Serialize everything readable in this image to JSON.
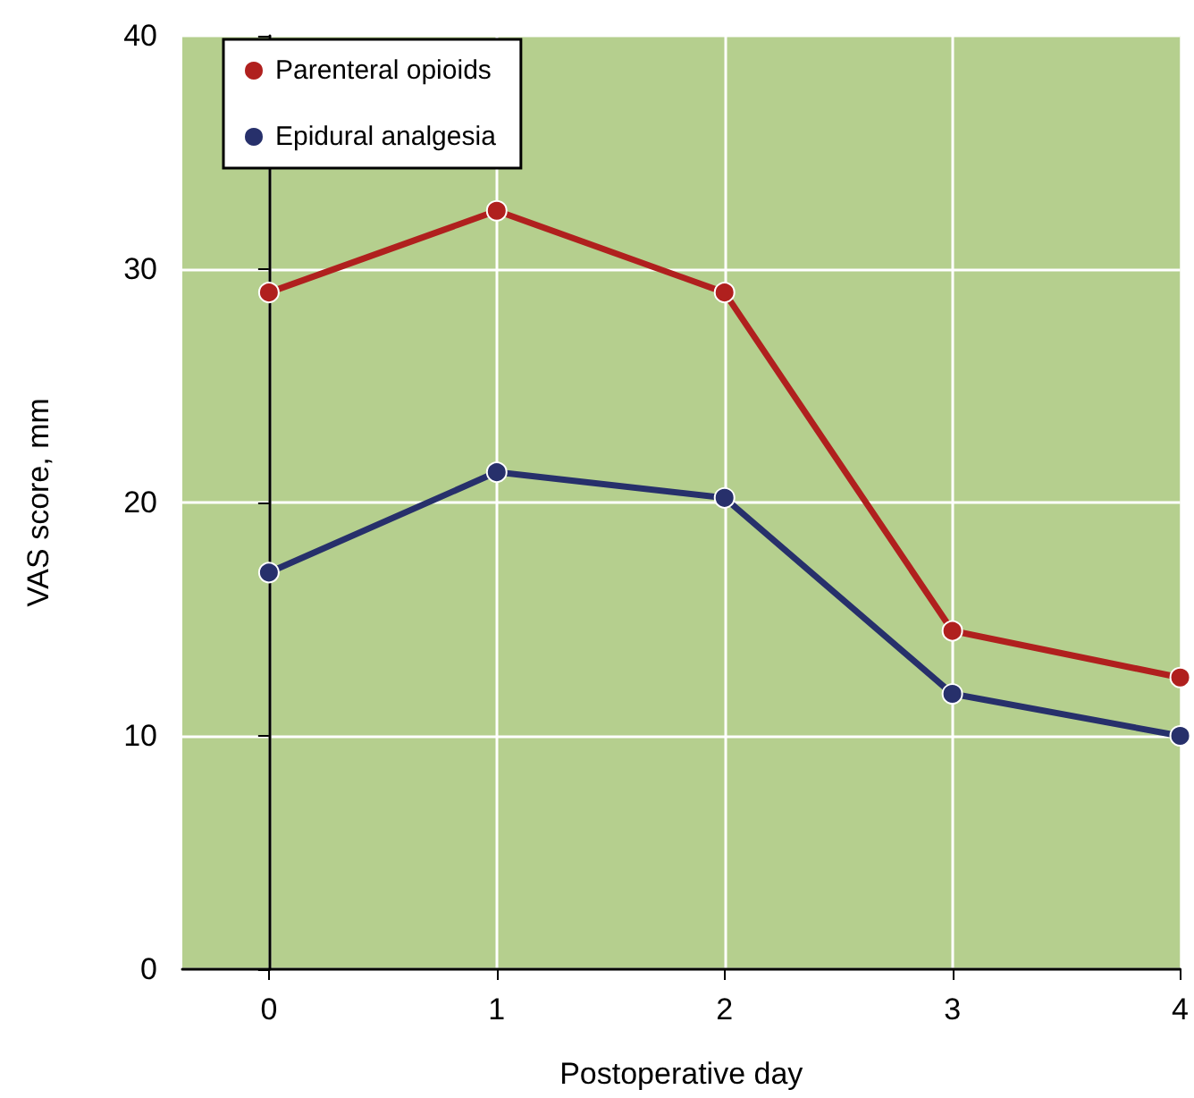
{
  "chart_data": {
    "type": "line",
    "xlabel": "Postoperative day",
    "ylabel": "VAS score, mm",
    "x": [
      0,
      1,
      2,
      3,
      4
    ],
    "series": [
      {
        "name": "Parenteral opioids",
        "color": "#b0201e",
        "values": [
          29,
          32.5,
          29,
          14.5,
          12.5
        ]
      },
      {
        "name": "Epidural analgesia",
        "color": "#27306b",
        "values": [
          17,
          21.3,
          20.2,
          11.8,
          10
        ]
      }
    ],
    "xlim": [
      -0.38,
      4
    ],
    "xticks": [
      0,
      1,
      2,
      3,
      4
    ],
    "ylim": [
      0,
      40
    ],
    "yticks": [
      0,
      10,
      20,
      30,
      40
    ],
    "grid": true,
    "legend": "top left",
    "marker": "circle",
    "line_style": "solid"
  }
}
